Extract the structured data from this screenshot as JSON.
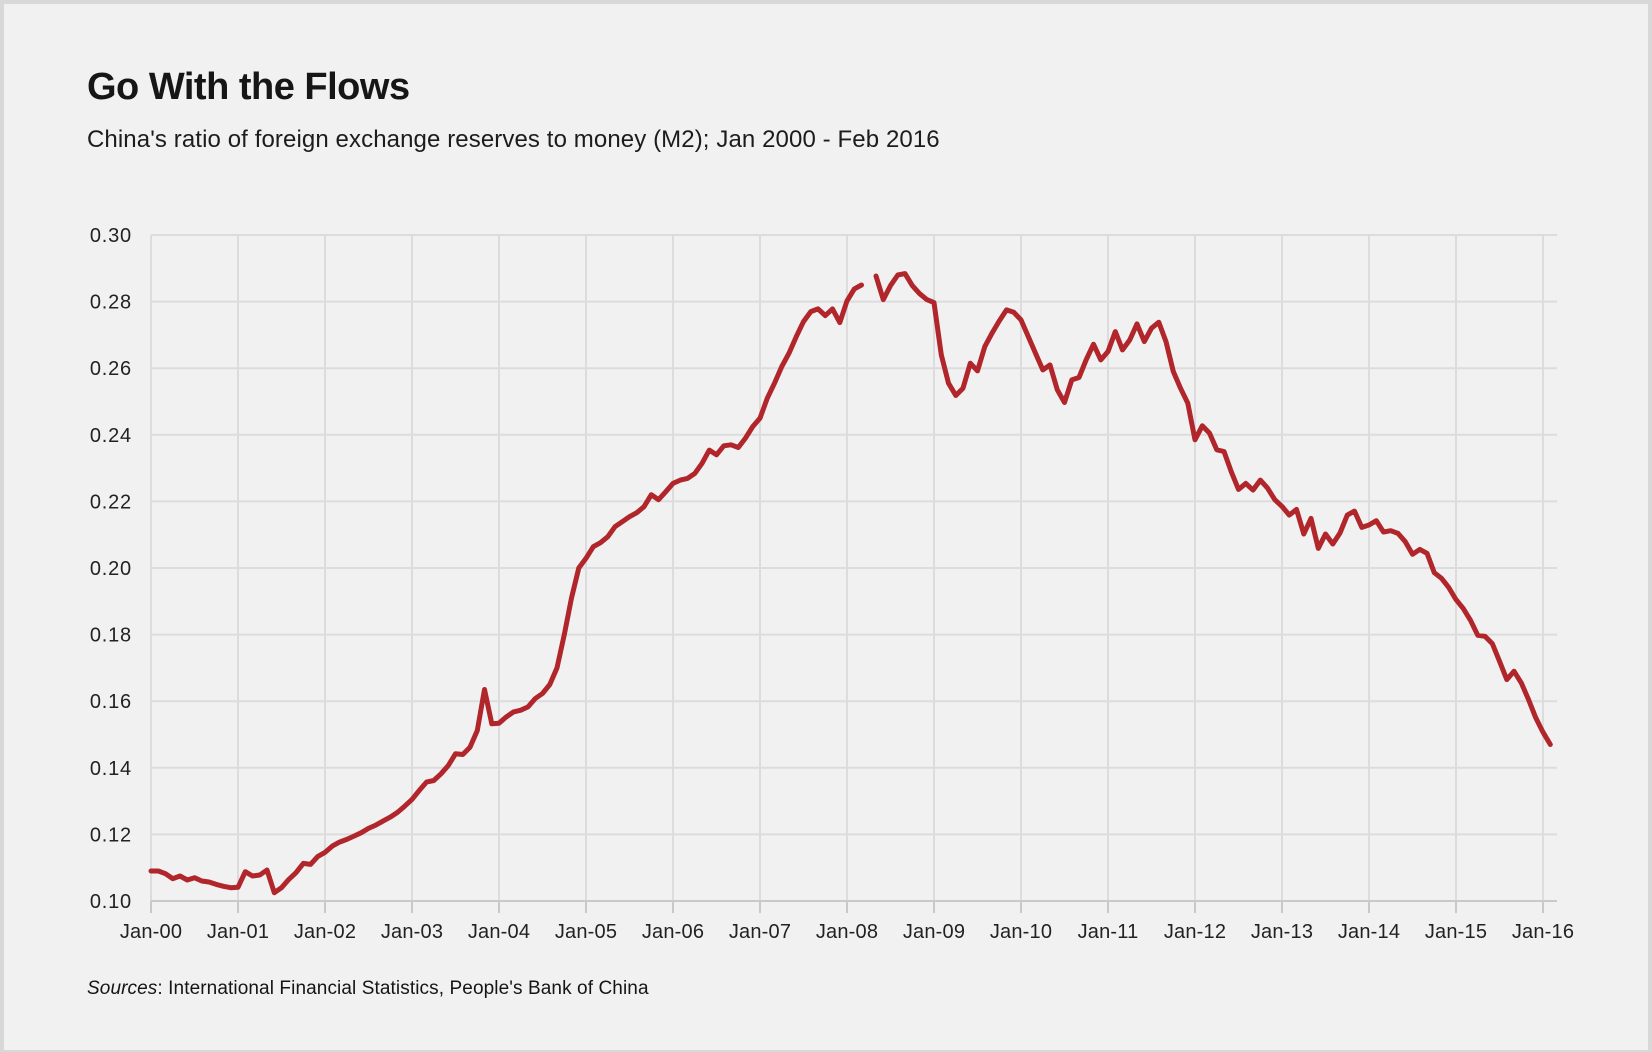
{
  "title": "Go With the Flows",
  "subtitle": "China's ratio of foreign exchange reserves to money (M2); Jan 2000 - Feb 2016",
  "source": {
    "label": "Sources",
    "rest": ": International Financial Statistics, People's Bank of China"
  },
  "colors": {
    "line": "#b0262b",
    "background": "#f1f1f2",
    "border": "#d8d8d9",
    "grid": "#dcdcde",
    "text": "#1c1c1c"
  },
  "chart_data": {
    "type": "line",
    "title": "Go With the Flows",
    "subtitle": "China's ratio of foreign exchange reserves to money (M2); Jan 2000 - Feb 2016",
    "xlabel": "",
    "ylabel": "",
    "grid": true,
    "ylim": [
      0.1,
      0.3
    ],
    "y_tick_step": 0.02,
    "y_tick_labels": [
      "0.10",
      "0.12",
      "0.14",
      "0.16",
      "0.18",
      "0.20",
      "0.22",
      "0.24",
      "0.26",
      "0.28",
      "0.30"
    ],
    "x_tick_labels": [
      "Jan-00",
      "Jan-01",
      "Jan-02",
      "Jan-03",
      "Jan-04",
      "Jan-05",
      "Jan-06",
      "Jan-07",
      "Jan-08",
      "Jan-09",
      "Jan-10",
      "Jan-11",
      "Jan-12",
      "Jan-13",
      "Jan-14",
      "Jan-15",
      "Jan-16"
    ],
    "x_start": "2000-01",
    "x_end": "2016-02",
    "frequency": "monthly",
    "series": [
      {
        "name": "China FX reserves to M2 ratio",
        "color": "#b0262b",
        "values": [
          0.109,
          0.109,
          0.1082,
          0.1067,
          0.1075,
          0.1063,
          0.107,
          0.106,
          0.1057,
          0.105,
          0.1044,
          0.104,
          0.1041,
          0.1088,
          0.1075,
          0.1078,
          0.1093,
          0.1025,
          0.104,
          0.1065,
          0.1085,
          0.1113,
          0.111,
          0.1134,
          0.1146,
          0.1165,
          0.1177,
          0.1185,
          0.1195,
          0.1205,
          0.1218,
          0.1228,
          0.124,
          0.1252,
          0.1266,
          0.1285,
          0.1305,
          0.1332,
          0.1357,
          0.1362,
          0.1382,
          0.1407,
          0.1442,
          0.144,
          0.1462,
          0.1512,
          0.1635,
          0.1532,
          0.1534,
          0.1553,
          0.1568,
          0.1573,
          0.1583,
          0.1608,
          0.1623,
          0.165,
          0.17,
          0.18,
          0.191,
          0.2,
          0.2029,
          0.2064,
          0.2076,
          0.2094,
          0.2124,
          0.2139,
          0.2154,
          0.2166,
          0.2184,
          0.222,
          0.2205,
          0.2229,
          0.2254,
          0.2264,
          0.2269,
          0.2284,
          0.2314,
          0.2354,
          0.234,
          0.2367,
          0.237,
          0.2362,
          0.239,
          0.2425,
          0.245,
          0.251,
          0.2555,
          0.2605,
          0.2645,
          0.2695,
          0.274,
          0.277,
          0.2778,
          0.2758,
          0.2778,
          0.2737,
          0.2802,
          0.2838,
          0.285,
          null,
          0.2877,
          0.2806,
          0.2848,
          0.288,
          0.2884,
          0.2848,
          0.2824,
          0.2806,
          0.2797,
          0.264,
          0.2555,
          0.2518,
          0.254,
          0.2615,
          0.2592,
          0.2665,
          0.2705,
          0.2742,
          0.2775,
          0.2768,
          0.2745,
          0.2695,
          0.2645,
          0.2595,
          0.261,
          0.2535,
          0.2497,
          0.2565,
          0.2572,
          0.2626,
          0.2672,
          0.2625,
          0.265,
          0.271,
          0.2655,
          0.2685,
          0.2733,
          0.268,
          0.272,
          0.2738,
          0.268,
          0.259,
          0.254,
          0.2495,
          0.2385,
          0.2427,
          0.2405,
          0.2355,
          0.235,
          0.2289,
          0.2236,
          0.2254,
          0.2234,
          0.2264,
          0.224,
          0.2205,
          0.2185,
          0.2159,
          0.2176,
          0.2102,
          0.2149,
          0.2059,
          0.2102,
          0.2072,
          0.2105,
          0.2159,
          0.2171,
          0.2122,
          0.2129,
          0.2142,
          0.2108,
          0.2112,
          0.2104,
          0.2079,
          0.2041,
          0.2056,
          0.2044,
          0.1986,
          0.1969,
          0.1941,
          0.1905,
          0.1878,
          0.1843,
          0.1798,
          0.1795,
          0.1773,
          0.172,
          0.1665,
          0.169,
          0.1655,
          0.1605,
          0.155,
          0.1507,
          0.147
        ]
      }
    ]
  }
}
